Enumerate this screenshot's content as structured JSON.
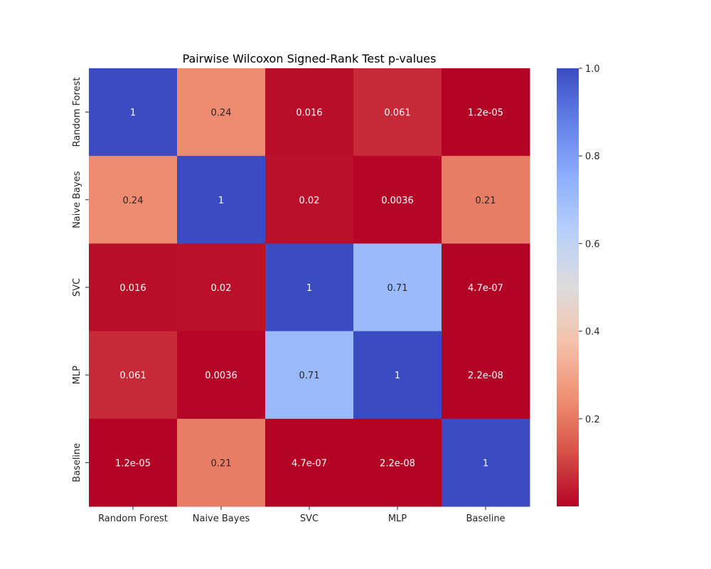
{
  "chart_data": {
    "type": "heatmap",
    "title": "Pairwise Wilcoxon Signed-Rank Test p-values",
    "xlabel": "",
    "ylabel": "",
    "x_categories": [
      "Random Forest",
      "Naive Bayes",
      "SVC",
      "MLP",
      "Baseline"
    ],
    "y_categories": [
      "Random Forest",
      "Naive Bayes",
      "SVC",
      "MLP",
      "Baseline"
    ],
    "values": [
      [
        1,
        0.24,
        0.016,
        0.061,
        1.2e-05
      ],
      [
        0.24,
        1,
        0.02,
        0.0036,
        0.21
      ],
      [
        0.016,
        0.02,
        1,
        0.71,
        4.7e-07
      ],
      [
        0.061,
        0.0036,
        0.71,
        1,
        2.2e-08
      ],
      [
        1.2e-05,
        0.21,
        4.7e-07,
        2.2e-08,
        1
      ]
    ],
    "annotations": [
      [
        "1",
        "0.24",
        "0.016",
        "0.061",
        "1.2e-05"
      ],
      [
        "0.24",
        "1",
        "0.02",
        "0.0036",
        "0.21"
      ],
      [
        "0.016",
        "0.02",
        "1",
        "0.71",
        "4.7e-07"
      ],
      [
        "0.061",
        "0.0036",
        "0.71",
        "1",
        "2.2e-08"
      ],
      [
        "1.2e-05",
        "0.21",
        "4.7e-07",
        "2.2e-08",
        "1"
      ]
    ],
    "colormap": "coolwarm_r",
    "colorbar": {
      "vmin": 2.2e-08,
      "vmax": 1,
      "ticks": [
        0.2,
        0.4,
        0.6,
        0.8,
        1.0
      ],
      "tick_labels": [
        "0.2",
        "0.4",
        "0.6",
        "0.8",
        "1.0"
      ]
    },
    "grid": false
  }
}
